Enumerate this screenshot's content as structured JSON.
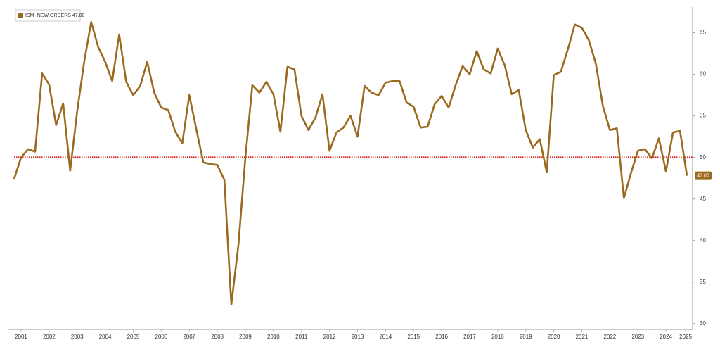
{
  "chart_data": {
    "type": "line",
    "x": [
      2001.25,
      2001.5,
      2001.75,
      2002,
      2002.25,
      2002.5,
      2002.75,
      2003,
      2003.25,
      2003.5,
      2003.75,
      2004,
      2004.25,
      2004.5,
      2004.75,
      2005,
      2005.25,
      2005.5,
      2005.75,
      2006,
      2006.25,
      2006.5,
      2006.75,
      2007,
      2007.25,
      2007.5,
      2007.75,
      2008,
      2008.25,
      2008.5,
      2008.75,
      2009,
      2009.25,
      2009.5,
      2009.75,
      2010,
      2010.25,
      2010.5,
      2010.75,
      2011,
      2011.25,
      2011.5,
      2011.75,
      2012,
      2012.25,
      2012.5,
      2012.75,
      2013,
      2013.25,
      2013.5,
      2013.75,
      2014,
      2014.25,
      2014.5,
      2014.75,
      2015,
      2015.25,
      2015.5,
      2015.75,
      2016,
      2016.25,
      2016.5,
      2016.75,
      2017,
      2017.25,
      2017.5,
      2017.75,
      2018,
      2018.25,
      2018.5,
      2018.75,
      2019,
      2019.25,
      2019.5,
      2019.75,
      2020,
      2020.25,
      2020.5,
      2020.75,
      2021,
      2021.25,
      2021.5,
      2021.75,
      2022,
      2022.25,
      2022.5,
      2022.75,
      2023,
      2023.25,
      2023.5,
      2023.75,
      2024,
      2024.25,
      2024.5,
      2024.75,
      2025,
      2025.25
    ],
    "series": [
      {
        "name": "ISM- NEW ORDERS 47.80",
        "color": "#9a6a1f",
        "values": [
          47.4,
          50.0,
          51.0,
          50.7,
          60.1,
          58.8,
          53.9,
          56.5,
          48.4,
          55.5,
          61.5,
          66.3,
          63.3,
          61.5,
          59.2,
          64.8,
          59.1,
          57.5,
          58.6,
          61.5,
          57.8,
          56.0,
          55.7,
          53.1,
          51.7,
          57.5,
          53.4,
          49.4,
          49.2,
          49.1,
          47.3,
          32.3,
          39.4,
          50.0,
          58.7,
          57.8,
          59.1,
          57.6,
          53.1,
          60.9,
          60.6,
          55.0,
          53.3,
          54.8,
          57.6,
          50.8,
          53.0,
          53.6,
          55.0,
          52.5,
          58.6,
          57.8,
          57.5,
          59.0,
          59.2,
          59.2,
          56.6,
          56.1,
          53.6,
          53.7,
          56.4,
          57.4,
          56.0,
          58.7,
          61.0,
          60.0,
          62.8,
          60.6,
          60.1,
          63.1,
          61.1,
          57.6,
          58.1,
          53.3,
          51.2,
          52.2,
          48.2,
          59.9,
          60.3,
          63.0,
          66.0,
          65.6,
          64.1,
          61.3,
          56.2,
          53.3,
          53.5,
          45.1,
          48.1,
          50.8,
          51.0,
          49.9,
          52.3,
          48.3,
          53.0,
          53.2,
          47.8
        ],
        "value_labels": [
          null,
          null,
          null,
          null,
          null,
          null,
          null,
          null,
          null,
          null,
          null,
          null,
          null,
          null,
          null,
          null,
          null,
          null,
          null,
          null,
          null,
          null,
          null,
          null,
          null,
          null,
          null,
          null,
          null,
          null,
          null,
          null,
          null,
          null,
          null,
          null,
          null,
          null,
          null,
          null,
          null,
          null,
          null,
          null,
          null,
          null,
          null,
          null,
          null,
          null,
          null,
          null,
          null,
          null,
          null,
          null,
          null,
          null,
          null,
          null,
          null,
          null,
          null,
          null,
          null,
          null,
          null,
          null,
          null,
          null,
          null,
          null,
          null,
          null,
          null,
          null,
          null,
          null,
          null,
          null,
          null,
          null,
          null,
          null,
          null,
          null,
          null,
          null,
          null,
          null,
          null,
          null,
          null,
          null,
          null,
          null,
          "47.80"
        ]
      }
    ],
    "reference_line": {
      "value": 50,
      "color": "#e02020"
    },
    "xlim": [
      2001.25,
      2025.45
    ],
    "xticks": [
      {
        "value": 2001.5,
        "label": "2001"
      },
      {
        "value": 2002.5,
        "label": "2002"
      },
      {
        "value": 2003.5,
        "label": "2003"
      },
      {
        "value": 2004.5,
        "label": "2004"
      },
      {
        "value": 2005.5,
        "label": "2005"
      },
      {
        "value": 2006.5,
        "label": "2006"
      },
      {
        "value": 2007.5,
        "label": "2007"
      },
      {
        "value": 2008.5,
        "label": "2008"
      },
      {
        "value": 2009.5,
        "label": "2009"
      },
      {
        "value": 2010.5,
        "label": "2010"
      },
      {
        "value": 2011.5,
        "label": "2011"
      },
      {
        "value": 2012.5,
        "label": "2012"
      },
      {
        "value": 2013.5,
        "label": "2013"
      },
      {
        "value": 2014.5,
        "label": "2014"
      },
      {
        "value": 2015.5,
        "label": "2015"
      },
      {
        "value": 2016.5,
        "label": "2016"
      },
      {
        "value": 2017.5,
        "label": "2017"
      },
      {
        "value": 2018.5,
        "label": "2018"
      },
      {
        "value": 2019.5,
        "label": "2019"
      },
      {
        "value": 2020.5,
        "label": "2020"
      },
      {
        "value": 2021.5,
        "label": "2021"
      },
      {
        "value": 2022.5,
        "label": "2022"
      },
      {
        "value": 2023.5,
        "label": "2023"
      },
      {
        "value": 2024.5,
        "label": "2024"
      },
      {
        "value": 2025.2,
        "label": "2025"
      }
    ],
    "ylim": [
      29.3,
      68.1
    ],
    "yticks": [
      30,
      35,
      40,
      45,
      50,
      55,
      60,
      65
    ],
    "y_axis_side": "right",
    "legend": "top-left"
  }
}
